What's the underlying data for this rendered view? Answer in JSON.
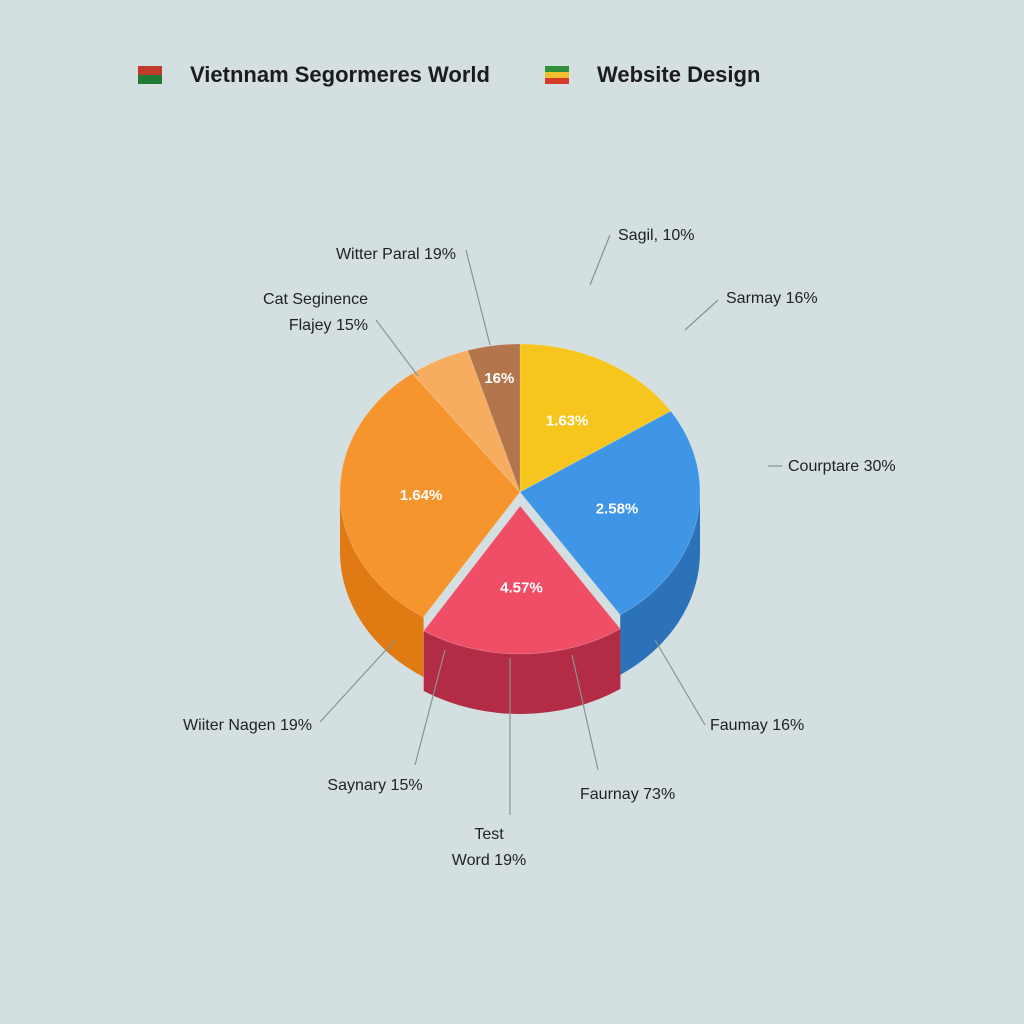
{
  "chart_data": {
    "type": "pie",
    "legend": [
      {
        "label": "Vietnnam Segormeres World",
        "colors": [
          "#c0392b",
          "#1e7a34"
        ]
      },
      {
        "label": "Website Design",
        "colors": [
          "#2f8f3a",
          "#f2c12e",
          "#d93b2b"
        ]
      }
    ],
    "legend_position": "top",
    "slices": [
      {
        "name": "yellow",
        "value": 15.8,
        "color": "#f6c51e",
        "side": "#d6a40f",
        "inner_label": "1.63%"
      },
      {
        "name": "blue",
        "value": 24.8,
        "color": "#3f96e6",
        "side": "#2c72b8",
        "inner_label": "2.58%"
      },
      {
        "name": "red",
        "value": 18.4,
        "color": "#ef4e66",
        "side": "#b22c45",
        "inner_label": "4.57%",
        "exploded": true
      },
      {
        "name": "orange",
        "value": 30.8,
        "color": "#f6942d",
        "side": "#e07a12",
        "inner_label": "1.64%"
      },
      {
        "name": "light-orange",
        "value": 5.5,
        "color": "#f6ad5f",
        "side": "#e09443",
        "inner_label": ""
      },
      {
        "name": "brown",
        "value": 4.7,
        "color": "#b3764c",
        "side": "#8f5a35",
        "inner_label": "16%"
      }
    ],
    "callouts": [
      {
        "lines": [
          "Sagil, 10%"
        ]
      },
      {
        "lines": [
          "Sarmay 16%"
        ]
      },
      {
        "lines": [
          "Courptare 30%"
        ]
      },
      {
        "lines": [
          "Faumay 16%"
        ]
      },
      {
        "lines": [
          "Faurnay 73%"
        ]
      },
      {
        "lines": [
          "Test",
          "Word 19%"
        ]
      },
      {
        "lines": [
          "Saynary 15%"
        ]
      },
      {
        "lines": [
          "Wiiter Nagen 19%"
        ]
      },
      {
        "lines": [
          "Cat Seginence",
          "Flajey 15%"
        ]
      },
      {
        "lines": [
          "Witter Paral 19%"
        ]
      }
    ]
  }
}
